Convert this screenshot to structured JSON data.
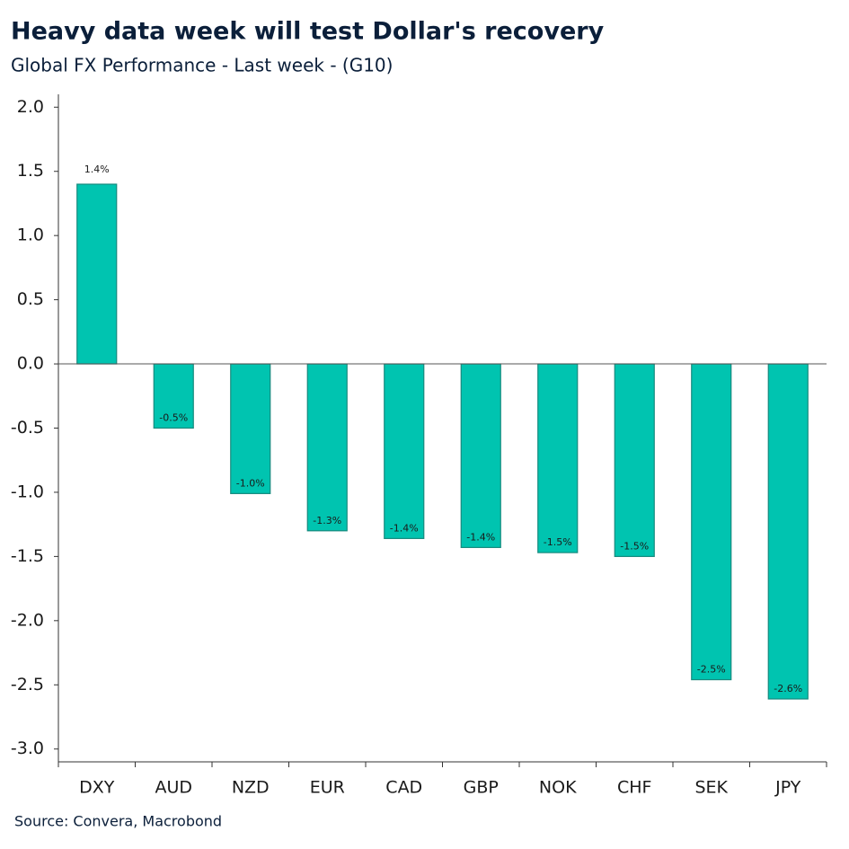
{
  "chart_data": {
    "type": "bar",
    "title": "Heavy data week will test Dollar's recovery",
    "subtitle": "Global FX Performance - Last week - (G10)",
    "source": "Source: Convera, Macrobond",
    "categories": [
      "DXY",
      "AUD",
      "NZD",
      "EUR",
      "CAD",
      "GBP",
      "NOK",
      "CHF",
      "SEK",
      "JPY"
    ],
    "values": [
      1.4,
      -0.5,
      -1.01,
      -1.3,
      -1.36,
      -1.43,
      -1.47,
      -1.5,
      -2.46,
      -2.61
    ],
    "value_labels": [
      "1.4%",
      "-0.5%",
      "-1.0%",
      "-1.3%",
      "-1.4%",
      "-1.4%",
      "-1.5%",
      "-1.5%",
      "-2.5%",
      "-2.6%"
    ],
    "color": "#00c4b0",
    "ylim": [
      -3.1,
      2.1
    ],
    "yticks": [
      {
        "value": 2,
        "label": "2.0"
      },
      {
        "value": 1.5,
        "label": "1.5"
      },
      {
        "value": 1,
        "label": "1.0"
      },
      {
        "value": 0.5,
        "label": "0.5"
      },
      {
        "value": 0,
        "label": "0.0"
      },
      {
        "value": -0.5,
        "label": "-0.5"
      },
      {
        "value": -1,
        "label": "-1.0"
      },
      {
        "value": -1.5,
        "label": "-1.5"
      },
      {
        "value": -2,
        "label": "-2.0"
      },
      {
        "value": -2.5,
        "label": "-2.5"
      },
      {
        "value": -3,
        "label": "-3.0"
      }
    ]
  }
}
